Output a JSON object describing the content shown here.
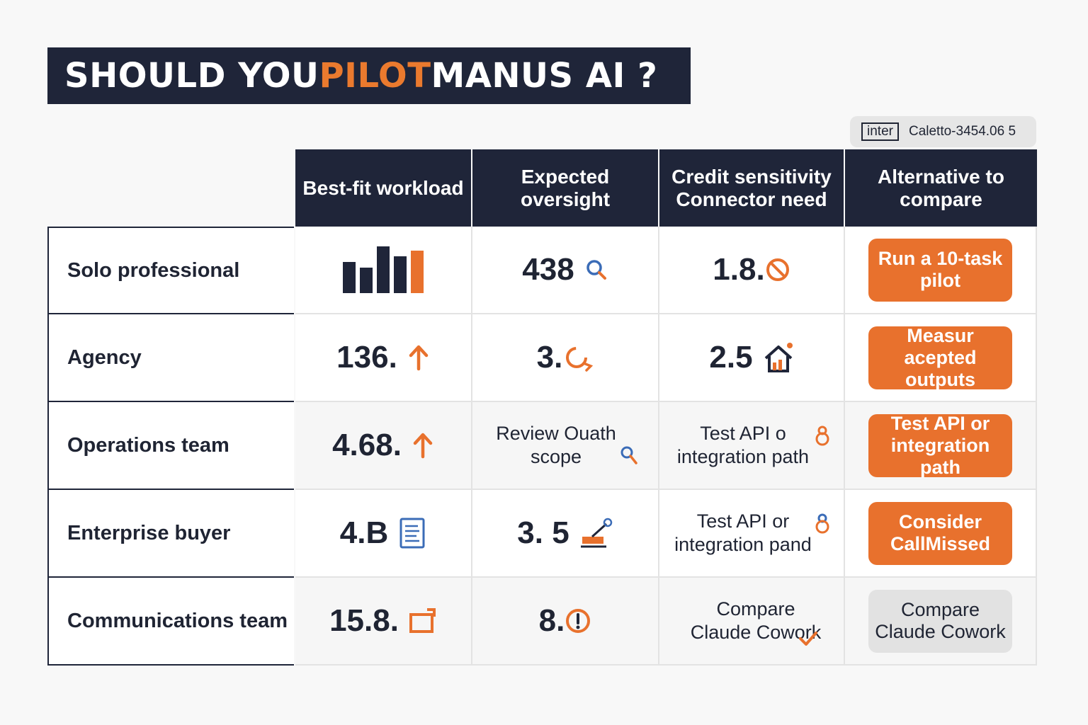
{
  "title": {
    "part1": "SHOULD YOU ",
    "accent": "PILOT",
    "part2": " MANUS AI ?"
  },
  "tag": {
    "box": "inter",
    "text": "Caletto-3454.06 5"
  },
  "columns": [
    "Best-fit workload",
    "Expected oversight",
    "Credit sensitivity Connector need",
    "Alternative to compare"
  ],
  "rows": [
    {
      "label": "Solo professional",
      "c1": "",
      "c2": "438",
      "c3": "1.8.",
      "action": "Run a 10-task pilot"
    },
    {
      "label": "Agency",
      "c1": "136.",
      "c2": "3.",
      "c3": "2.5",
      "action": "Measur acepted outputs"
    },
    {
      "label": "Operations team",
      "c1": "4.68.",
      "c2": "Review Ouath scope",
      "c3": "Test API o integration path",
      "action": "Test API or integration path"
    },
    {
      "label": "Enterprise buyer",
      "c1": "4.B",
      "c2": "3. 5",
      "c3": "Test API or integration pand",
      "action": "Consider CallMissed"
    },
    {
      "label": "Communications team",
      "c1": "15.8.",
      "c2": "8.",
      "c3": "Compare Claude Cowork",
      "action": "Compare Claude Cowork"
    }
  ],
  "colors": {
    "navy": "#1f2539",
    "orange": "#e8712d",
    "accent": "#ea7a2e",
    "blue": "#3b6cb7"
  }
}
